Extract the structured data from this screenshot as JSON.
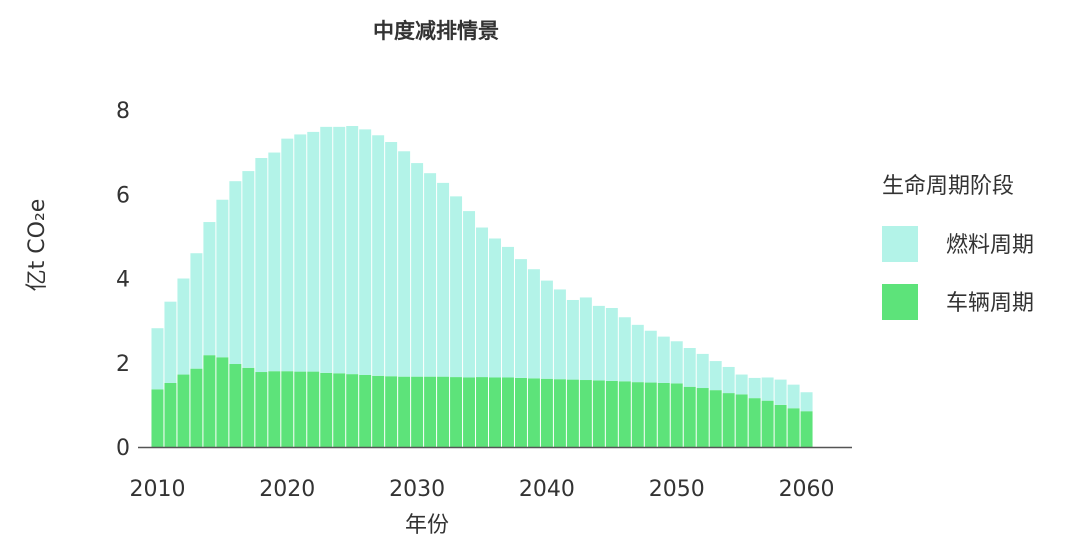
{
  "chart_data": {
    "type": "bar",
    "stacked": true,
    "title": "中度减排情景",
    "xlabel": "年份",
    "ylabel": "亿t CO₂e",
    "x": [
      2010,
      2011,
      2012,
      2013,
      2014,
      2015,
      2016,
      2017,
      2018,
      2019,
      2020,
      2021,
      2022,
      2023,
      2024,
      2025,
      2026,
      2027,
      2028,
      2029,
      2030,
      2031,
      2032,
      2033,
      2034,
      2035,
      2036,
      2037,
      2038,
      2039,
      2040,
      2041,
      2042,
      2043,
      2044,
      2045,
      2046,
      2047,
      2048,
      2049,
      2050,
      2051,
      2052,
      2053,
      2054,
      2055,
      2056,
      2057,
      2058,
      2059,
      2060
    ],
    "xlim": [
      2008.5,
      2063.5
    ],
    "ylim": [
      0,
      8
    ],
    "x_ticks": [
      {
        "value": 2010,
        "label": "2010"
      },
      {
        "value": 2020,
        "label": "2020"
      },
      {
        "value": 2030,
        "label": "2030"
      },
      {
        "value": 2040,
        "label": "2040"
      },
      {
        "value": 2050,
        "label": "2050"
      },
      {
        "value": 2060,
        "label": "2060"
      }
    ],
    "y_ticks": [
      {
        "value": 0,
        "label": "0"
      },
      {
        "value": 2,
        "label": "2"
      },
      {
        "value": 4,
        "label": "4"
      },
      {
        "value": 6,
        "label": "6"
      },
      {
        "value": 8,
        "label": "8"
      }
    ],
    "series": [
      {
        "name": "车辆周期",
        "color": "#5de37a",
        "values": [
          1.37,
          1.52,
          1.72,
          1.86,
          2.18,
          2.13,
          1.97,
          1.88,
          1.78,
          1.8,
          1.8,
          1.79,
          1.79,
          1.76,
          1.75,
          1.73,
          1.71,
          1.69,
          1.68,
          1.67,
          1.67,
          1.67,
          1.67,
          1.66,
          1.65,
          1.66,
          1.65,
          1.65,
          1.64,
          1.63,
          1.62,
          1.61,
          1.6,
          1.59,
          1.58,
          1.57,
          1.56,
          1.54,
          1.53,
          1.52,
          1.51,
          1.43,
          1.4,
          1.35,
          1.28,
          1.25,
          1.16,
          1.1,
          1.0,
          0.92,
          0.85
        ]
      },
      {
        "name": "燃料周期",
        "color": "#b3f3e8",
        "values": [
          1.45,
          1.93,
          2.28,
          2.74,
          3.16,
          3.74,
          4.34,
          4.67,
          5.08,
          5.19,
          5.52,
          5.63,
          5.69,
          5.84,
          5.85,
          5.89,
          5.83,
          5.71,
          5.56,
          5.35,
          5.07,
          4.83,
          4.6,
          4.29,
          3.95,
          3.55,
          3.3,
          3.1,
          2.82,
          2.59,
          2.33,
          2.13,
          1.89,
          1.96,
          1.77,
          1.73,
          1.52,
          1.36,
          1.23,
          1.1,
          1.0,
          0.92,
          0.81,
          0.69,
          0.62,
          0.47,
          0.48,
          0.55,
          0.6,
          0.56,
          0.45
        ]
      }
    ],
    "legend": {
      "title": "生命周期阶段",
      "position": "right",
      "items": [
        {
          "label": "燃料周期",
          "color": "#b3f3e8"
        },
        {
          "label": "车辆周期",
          "color": "#5de37a"
        }
      ]
    },
    "grid": false
  }
}
